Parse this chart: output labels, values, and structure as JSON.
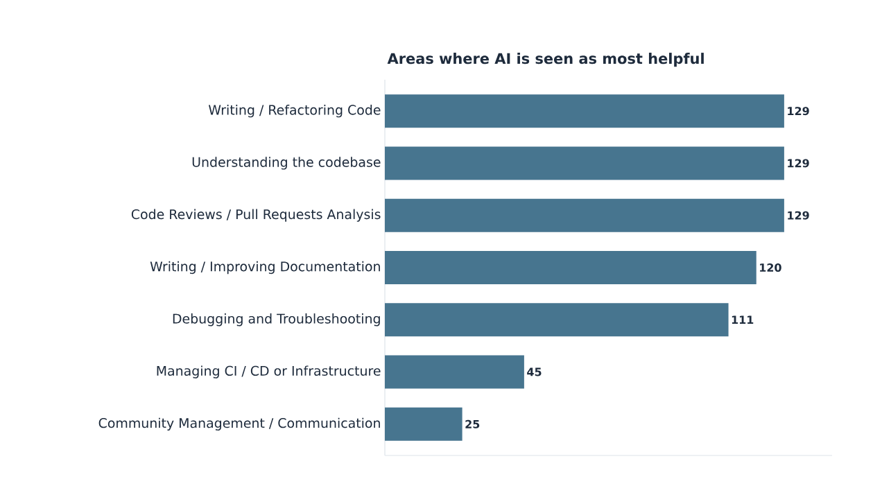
{
  "chart_data": {
    "type": "bar",
    "orientation": "horizontal",
    "title": "Areas where AI is seen as most helpful",
    "categories": [
      "Writing / Refactoring Code",
      "Understanding the codebase",
      "Code Reviews / Pull Requests Analysis",
      "Writing / Improving Documentation",
      "Debugging and Troubleshooting",
      "Managing CI / CD or Infrastructure",
      "Community Management / Communication"
    ],
    "values": [
      129,
      129,
      129,
      120,
      111,
      45,
      25
    ],
    "color": "#47758f",
    "data_labels": true,
    "tick_labels": "y"
  }
}
